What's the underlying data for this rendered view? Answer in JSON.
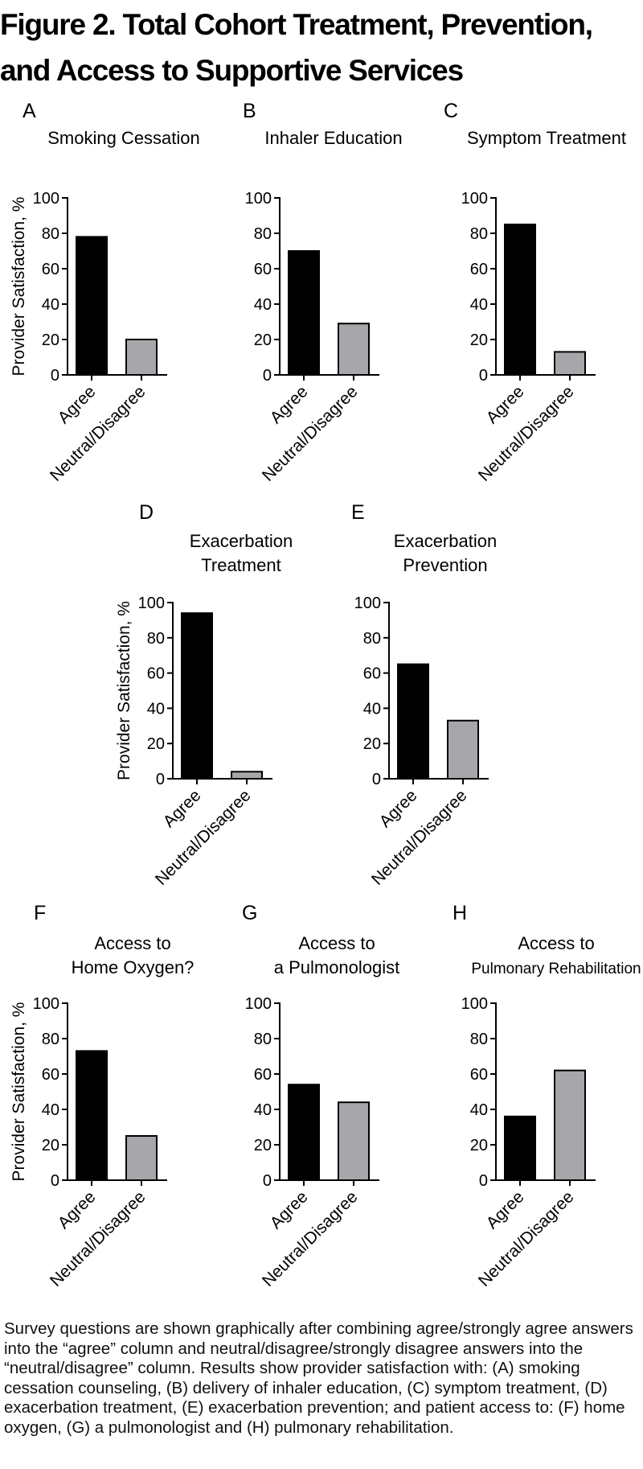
{
  "figure": {
    "title": "Figure 2. Total Cohort Treatment, Prevention, and Access to Supportive Services",
    "caption": "Survey questions are shown graphically after combining agree/strongly agree answers into the “agree” column and neutral/disagree/strongly disagree answers into the “neutral/disagree” column. Results show provider satisfaction with: (A) smoking cessation counseling, (B) delivery of inhaler education, (C) symptom treatment, (D) exacerbation treatment, (E) exacerbation prevention; and patient access to: (F) home oxygen, (G) a pulmonologist and (H) pulmonary rehabilitation."
  },
  "colors": {
    "agree": "#000000",
    "neutral": "#a7a7ab",
    "axis": "#000000"
  },
  "chart_data": [
    {
      "type": "bar",
      "panel": "A",
      "title": [
        "Smoking Cessation"
      ],
      "categories": [
        "Agree",
        "Neutral/Disagree"
      ],
      "values": [
        78,
        20
      ],
      "ylabel": "Provider Satisfaction, %",
      "ylim": [
        0,
        100
      ],
      "yticks": [
        0,
        20,
        40,
        60,
        80,
        100
      ]
    },
    {
      "type": "bar",
      "panel": "B",
      "title": [
        "Inhaler Education"
      ],
      "categories": [
        "Agree",
        "Neutral/Disagree"
      ],
      "values": [
        70,
        29
      ],
      "ylabel": "",
      "ylim": [
        0,
        100
      ],
      "yticks": [
        0,
        20,
        40,
        60,
        80,
        100
      ]
    },
    {
      "type": "bar",
      "panel": "C",
      "title": [
        "Symptom Treatment"
      ],
      "categories": [
        "Agree",
        "Neutral/Disagree"
      ],
      "values": [
        85,
        13
      ],
      "ylabel": "",
      "ylim": [
        0,
        100
      ],
      "yticks": [
        0,
        20,
        40,
        60,
        80,
        100
      ]
    },
    {
      "type": "bar",
      "panel": "D",
      "title": [
        "Exacerbation",
        "Treatment"
      ],
      "categories": [
        "Agree",
        "Neutral/Disagree"
      ],
      "values": [
        94,
        4
      ],
      "ylabel": "Provider Satisfaction, %",
      "ylim": [
        0,
        100
      ],
      "yticks": [
        0,
        20,
        40,
        60,
        80,
        100
      ]
    },
    {
      "type": "bar",
      "panel": "E",
      "title": [
        "Exacerbation",
        "Prevention"
      ],
      "categories": [
        "Agree",
        "Neutral/Disagree"
      ],
      "values": [
        65,
        33
      ],
      "ylabel": "",
      "ylim": [
        0,
        100
      ],
      "yticks": [
        0,
        20,
        40,
        60,
        80,
        100
      ]
    },
    {
      "type": "bar",
      "panel": "F",
      "title": [
        "Access to",
        "Home Oxygen?"
      ],
      "categories": [
        "Agree",
        "Neutral/Disagree"
      ],
      "values": [
        73,
        25
      ],
      "ylabel": "Provider Satisfaction, %",
      "ylim": [
        0,
        100
      ],
      "yticks": [
        0,
        20,
        40,
        60,
        80,
        100
      ]
    },
    {
      "type": "bar",
      "panel": "G",
      "title": [
        "Access to",
        "a Pulmonologist"
      ],
      "categories": [
        "Agree",
        "Neutral/Disagree"
      ],
      "values": [
        54,
        44
      ],
      "ylabel": "",
      "ylim": [
        0,
        100
      ],
      "yticks": [
        0,
        20,
        40,
        60,
        80,
        100
      ]
    },
    {
      "type": "bar",
      "panel": "H",
      "title": [
        "Access to",
        "Pulmonary Rehabilitation"
      ],
      "categories": [
        "Agree",
        "Neutral/Disagree"
      ],
      "values": [
        36,
        62
      ],
      "ylabel": "",
      "ylim": [
        0,
        100
      ],
      "yticks": [
        0,
        20,
        40,
        60,
        80,
        100
      ]
    }
  ]
}
